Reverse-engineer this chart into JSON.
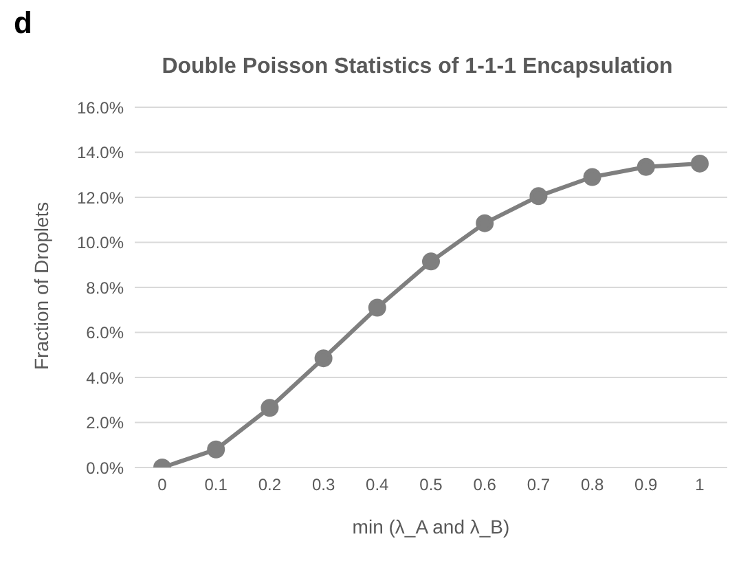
{
  "chart_data": {
    "type": "line",
    "title": "Double Poisson Statistics of 1-1-1 Encapsulation",
    "xlabel": "min (λ_A and λ_B)",
    "ylabel": "Fraction of Droplets",
    "annotations": [
      "d"
    ],
    "categories": [
      "0",
      "0.1",
      "0.2",
      "0.3",
      "0.4",
      "0.5",
      "0.6",
      "0.7",
      "0.8",
      "0.9",
      "1"
    ],
    "series": [
      {
        "color": "#7f7f7f",
        "values": [
          0,
          0.8,
          2.65,
          4.85,
          7.1,
          9.15,
          10.85,
          12.05,
          12.9,
          13.35,
          13.5
        ]
      }
    ],
    "ylim": [
      0,
      16
    ],
    "yticks": [
      {
        "value": 0,
        "label": "0.0%"
      },
      {
        "value": 2,
        "label": "2.0%"
      },
      {
        "value": 4,
        "label": "4.0%"
      },
      {
        "value": 6,
        "label": "6.0%"
      },
      {
        "value": 8,
        "label": "8.0%"
      },
      {
        "value": 10,
        "label": "10.0%"
      },
      {
        "value": 12,
        "label": "12.0%"
      },
      {
        "value": 14,
        "label": "14.0%"
      },
      {
        "value": 16,
        "label": "16.0%"
      }
    ],
    "grid": "y",
    "marker": "circle",
    "line_style": "solid",
    "legend": false
  }
}
